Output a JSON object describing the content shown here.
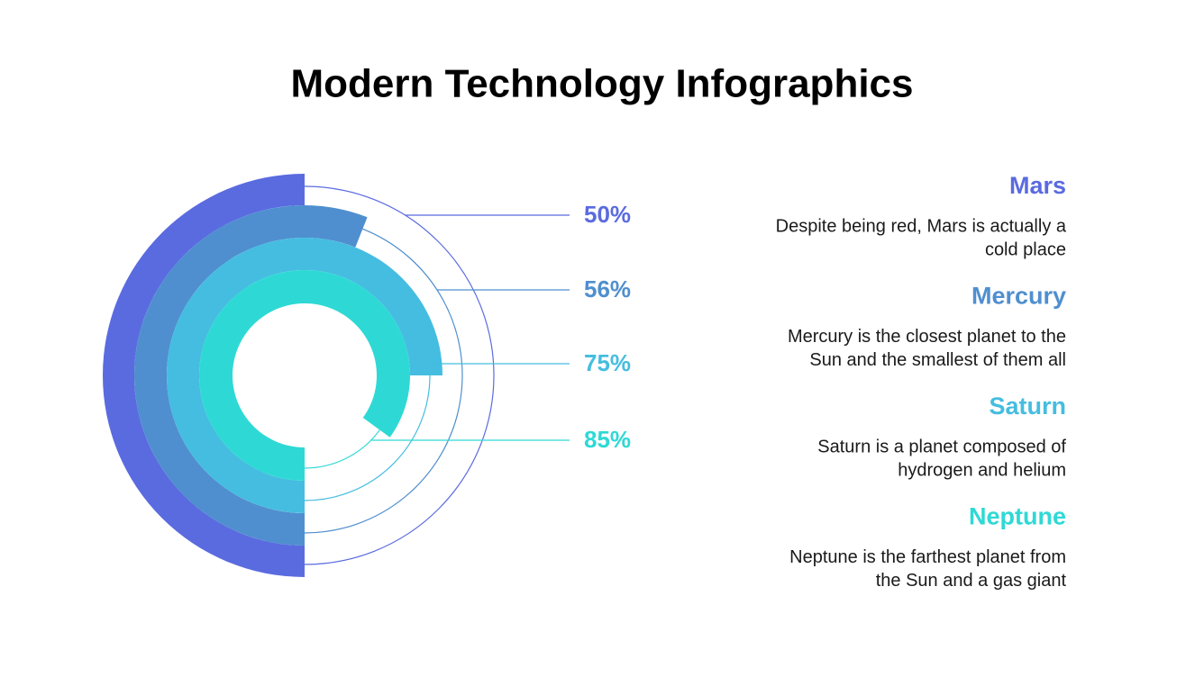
{
  "chart_data": {
    "type": "radial",
    "title": "Modern Technology Infographics",
    "categories": [
      "Mars",
      "Mercury",
      "Saturn",
      "Neptune"
    ],
    "values": [
      50,
      56,
      75,
      85
    ],
    "value_labels": [
      "50%",
      "56%",
      "75%",
      "85%"
    ],
    "colors": [
      "#5a6be0",
      "#4f8fcf",
      "#45bde0",
      "#2ed9d5"
    ],
    "descriptions": [
      [
        "Despite being red, Mars is actually a",
        "cold place"
      ],
      [
        "Mercury is the closest planet to the",
        "Sun and the smallest of them all"
      ],
      [
        "Saturn is a planet composed of",
        "hydrogen and helium"
      ],
      [
        "Neptune is the farthest planet from",
        "the Sun and a gas giant"
      ]
    ]
  }
}
